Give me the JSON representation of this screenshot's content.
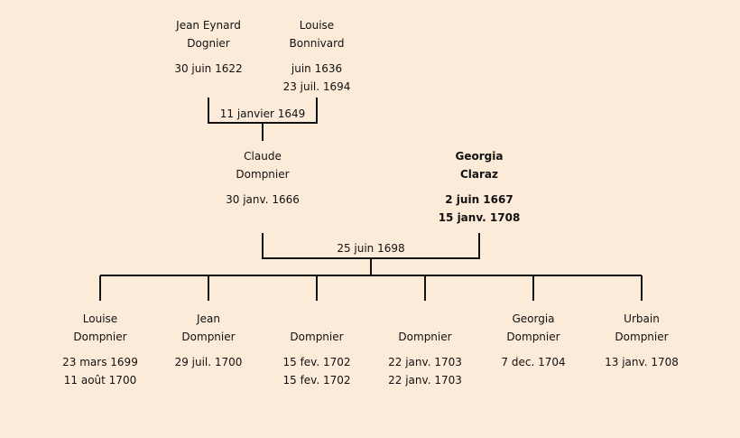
{
  "generation1": [
    {
      "first": "Jean Eynard",
      "last": "Dognier",
      "birth": "30 juin 1622",
      "death": ""
    },
    {
      "first": "Louise",
      "last": "Bonnivard",
      "birth": "juin 1636",
      "death": "23 juil. 1694"
    }
  ],
  "marriage1": "11 janvier 1649",
  "generation2": [
    {
      "first": "Claude",
      "last": "Dompnier",
      "birth": "30 janv. 1666",
      "death": ""
    },
    {
      "first": "Georgia",
      "last": "Claraz",
      "birth": "2 juin 1667",
      "death": "15 janv. 1708",
      "highlighted": true
    }
  ],
  "marriage2": "25 juin 1698",
  "children": [
    {
      "first": "Louise",
      "last": "Dompnier",
      "birth": "23 mars 1699",
      "death": "11 août 1700"
    },
    {
      "first": "Jean",
      "last": "Dompnier",
      "birth": "29 juil. 1700",
      "death": ""
    },
    {
      "first": "",
      "last": "Dompnier",
      "birth": "15 fev. 1702",
      "death": "15 fev. 1702"
    },
    {
      "first": "",
      "last": "Dompnier",
      "birth": "22 janv. 1703",
      "death": "22 janv. 1703"
    },
    {
      "first": "Georgia",
      "last": "Dompnier",
      "birth": "7 dec. 1704",
      "death": ""
    },
    {
      "first": "Urbain",
      "last": "Dompnier",
      "birth": "13 janv. 1708",
      "death": ""
    }
  ]
}
